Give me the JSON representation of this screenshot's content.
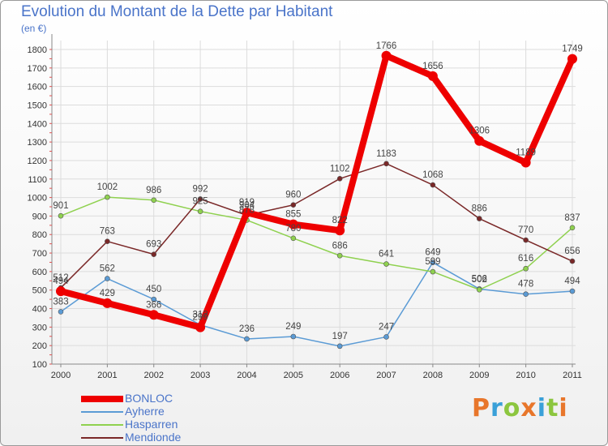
{
  "title": "Evolution du Montant de la Dette par Habitant",
  "subtitle": "(en €)",
  "logo": {
    "text": "Proxiti",
    "letter_colors": [
      "#e8762b",
      "#3aa0d8",
      "#8cc63f",
      "#e8762b",
      "#3aa0d8",
      "#8cc63f",
      "#e8762b"
    ]
  },
  "chart_data": {
    "type": "line",
    "x": [
      "2000",
      "2001",
      "2002",
      "2003",
      "2004",
      "2005",
      "2006",
      "2007",
      "2008",
      "2009",
      "2010",
      "2011"
    ],
    "ylim": [
      100,
      1800
    ],
    "yticks": [
      "100",
      "200",
      "300",
      "400",
      "500",
      "600",
      "700",
      "800",
      "900",
      "1000",
      "1100",
      "1200",
      "1300",
      "1400",
      "1500",
      "1600",
      "1700",
      "1800"
    ],
    "grid": true,
    "legend_position": "bottom-left",
    "series": [
      {
        "name": "Ayherre",
        "color": "#5b9bd5",
        "values": [
          383,
          562,
          450,
          312,
          236,
          249,
          197,
          247,
          649,
          506,
          478,
          494
        ],
        "labels": [
          "383",
          "562",
          "450",
          "312",
          "236",
          "249",
          "197",
          "247",
          "649",
          "506",
          "478",
          "494"
        ]
      },
      {
        "name": "Hasparren",
        "color": "#8fd14f",
        "values": [
          901,
          1002,
          986,
          925,
          878,
          780,
          686,
          641,
          599,
          502,
          616,
          837
        ],
        "labels": [
          "901",
          "1002",
          "986",
          "925",
          "878",
          "780",
          "686",
          "641",
          "599",
          "502",
          "616",
          "837"
        ]
      },
      {
        "name": "Mendionde",
        "color": "#7a2828",
        "values": [
          512,
          763,
          693,
          992,
          904,
          960,
          1102,
          1183,
          1068,
          886,
          770,
          656
        ],
        "labels": [
          "512",
          "763",
          "693",
          "992",
          "904",
          "960",
          "1102",
          "1183",
          "1068",
          "886",
          "770",
          "656"
        ]
      },
      {
        "name": "BONLOC",
        "color": "#ee0000",
        "values": [
          494,
          429,
          366,
          299,
          919,
          855,
          822,
          1766,
          1656,
          1306,
          1189,
          1749
        ],
        "labels": [
          "494",
          "429",
          "366",
          "299",
          "919",
          "855",
          "822",
          "1766",
          "1656",
          "1306",
          "1189",
          "1749"
        ]
      }
    ]
  }
}
